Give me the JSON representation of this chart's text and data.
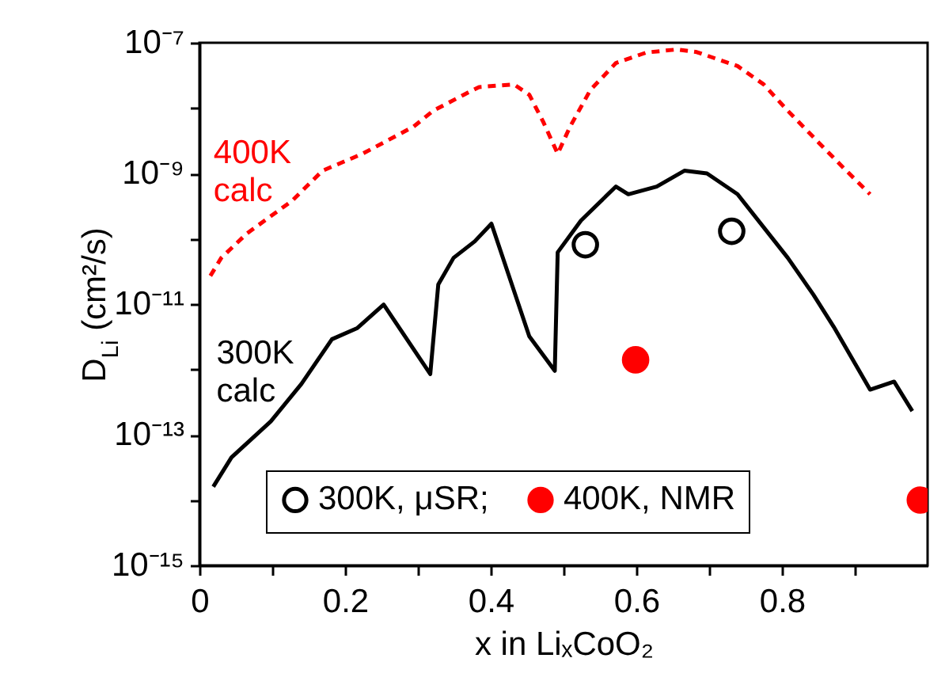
{
  "chart_data": {
    "type": "line",
    "xlabel": "x in LiₓCoO₂",
    "ylabel": "D$_{Li}$ (cm²/s)",
    "log": "y",
    "xlim": [
      0,
      1
    ],
    "xticks": [
      0,
      {
        "value": 0.1,
        "label": null
      },
      0.2,
      {
        "value": 0.3,
        "label": null
      },
      0.4,
      {
        "value": 0.5,
        "label": null
      },
      0.6,
      {
        "value": 0.7,
        "label": null
      },
      0.8,
      {
        "value": 0.9,
        "label": null
      }
    ],
    "ylim": [
      1e-15,
      1e-07
    ],
    "yticks": [
      {
        "value": 1e-15,
        "label": "10⁻¹⁵"
      },
      {
        "value": 1e-14,
        "label": null
      },
      {
        "value": 1e-13,
        "label": "10⁻¹³"
      },
      {
        "value": 1e-12,
        "label": null
      },
      {
        "value": 1e-11,
        "label": "10⁻¹¹"
      },
      {
        "value": 1e-10,
        "label": null
      },
      {
        "value": 1e-09,
        "label": "10⁻⁹"
      },
      {
        "value": 1e-08,
        "label": null
      },
      {
        "value": 1e-07,
        "label": "10⁻⁷"
      }
    ],
    "grid": false,
    "legend": "bottom",
    "series": [
      {
        "name": "400K calc",
        "color": "#ff0000",
        "line_style": "dashed",
        "x": [
          0.015,
          0.03,
          0.065,
          0.127,
          0.169,
          0.224,
          0.294,
          0.321,
          0.363,
          0.384,
          0.432,
          0.453,
          0.472,
          0.492,
          0.509,
          0.537,
          0.572,
          0.614,
          0.656,
          0.683,
          0.739,
          0.775,
          0.808,
          0.85,
          0.885,
          0.921
        ],
        "values": [
          2.7e-11,
          5.1e-11,
          1.2e-10,
          3.8e-10,
          1.1e-09,
          2e-09,
          5.2e-09,
          9.1e-09,
          1.6e-08,
          2.1e-08,
          2.3e-08,
          1.6e-08,
          6.2e-09,
          2e-09,
          5.2e-09,
          1.9e-08,
          4.9e-08,
          7.1e-08,
          7.9e-08,
          7.2e-08,
          4.4e-08,
          2.3e-08,
          9.1e-09,
          3e-09,
          1.2e-09,
          4.8e-10
        ]
      },
      {
        "name": "300K calc",
        "color": "#000000",
        "line_style": "solid",
        "x": [
          0.019,
          0.044,
          0.098,
          0.14,
          0.182,
          0.217,
          0.253,
          0.317,
          0.328,
          0.349,
          0.378,
          0.401,
          0.453,
          0.488,
          0.492,
          0.524,
          0.572,
          0.589,
          0.628,
          0.666,
          0.697,
          0.739,
          0.808,
          0.843,
          0.871,
          0.921,
          0.954,
          0.979
        ],
        "values": [
          1.6e-14,
          4.5e-14,
          1.6e-13,
          6e-13,
          2.9e-12,
          4.3e-12,
          9.8e-12,
          8.5e-13,
          2e-11,
          5.1e-11,
          9.1e-11,
          1.7e-10,
          3.2e-12,
          9.5e-13,
          6.2e-11,
          1.9e-10,
          6.3e-10,
          4.8e-10,
          6.3e-10,
          1.1e-09,
          1e-09,
          4.8e-10,
          5.1e-11,
          1.4e-11,
          4.5e-12,
          4.9e-13,
          6.5e-13,
          2.3e-13
        ]
      },
      {
        "name": "300K, μSR;",
        "type": "scatter",
        "color": "#000000",
        "marker": "circle",
        "x": [
          0.53,
          0.731
        ],
        "values": [
          8.1e-11,
          1.3e-10
        ]
      },
      {
        "name": "400K, NMR",
        "type": "scatter",
        "color": "#ff0000",
        "x": [
          0.599,
          0.99
        ],
        "values": [
          1.4e-12,
          1e-14
        ]
      }
    ]
  }
}
